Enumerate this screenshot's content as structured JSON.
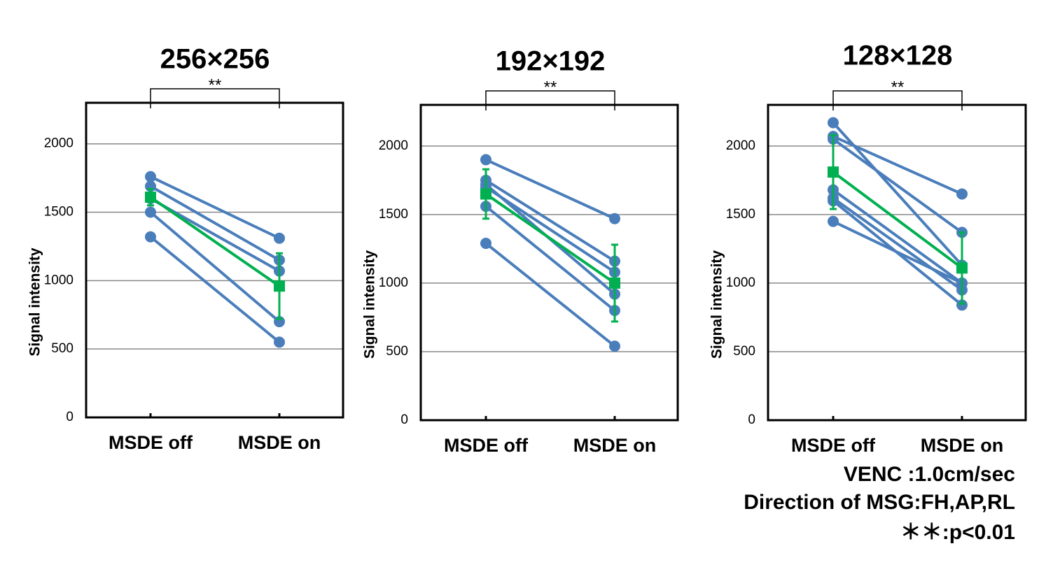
{
  "chart_data": [
    {
      "type": "line",
      "title": "256×256",
      "annotation": "**",
      "y_label": "Signal intensity",
      "categories": [
        "MSDE off",
        "MSDE on"
      ],
      "ylim": [
        0,
        2300
      ],
      "yticks": [
        0,
        500,
        1000,
        1500,
        2000
      ],
      "grid": true,
      "series": [
        {
          "color": "#4a7ebb",
          "values": [
            1760,
            1310
          ]
        },
        {
          "color": "#4a7ebb",
          "values": [
            1690,
            1150
          ]
        },
        {
          "color": "#4a7ebb",
          "values": [
            1600,
            1070
          ]
        },
        {
          "color": "#4a7ebb",
          "values": [
            1500,
            700
          ]
        },
        {
          "color": "#4a7ebb",
          "values": [
            1320,
            550
          ]
        },
        {
          "color": "#00b050",
          "values": [
            1610,
            960
          ],
          "errors": [
            60,
            240
          ],
          "marker": "square"
        }
      ]
    },
    {
      "type": "line",
      "title": "192×192",
      "annotation": "**",
      "y_label": "Signal intensity",
      "categories": [
        "MSDE off",
        "MSDE on"
      ],
      "ylim": [
        0,
        2300
      ],
      "yticks": [
        0,
        500,
        1000,
        1500,
        2000
      ],
      "grid": true,
      "series": [
        {
          "color": "#4a7ebb",
          "values": [
            1900,
            1470
          ]
        },
        {
          "color": "#4a7ebb",
          "values": [
            1750,
            1160
          ]
        },
        {
          "color": "#4a7ebb",
          "values": [
            1720,
            920
          ]
        },
        {
          "color": "#4a7ebb",
          "values": [
            1700,
            1080
          ]
        },
        {
          "color": "#4a7ebb",
          "values": [
            1560,
            800
          ]
        },
        {
          "color": "#4a7ebb",
          "values": [
            1290,
            540
          ]
        },
        {
          "color": "#00b050",
          "values": [
            1650,
            1000
          ],
          "errors": [
            180,
            280
          ],
          "marker": "square"
        }
      ]
    },
    {
      "type": "line",
      "title": "128×128",
      "annotation": "**",
      "y_label": "Signal intensity",
      "categories": [
        "MSDE off",
        "MSDE on"
      ],
      "ylim": [
        0,
        2300
      ],
      "yticks": [
        0,
        500,
        1000,
        1500,
        2000
      ],
      "grid": true,
      "series": [
        {
          "color": "#4a7ebb",
          "values": [
            2170,
            1130
          ]
        },
        {
          "color": "#4a7ebb",
          "values": [
            2070,
            1650
          ]
        },
        {
          "color": "#4a7ebb",
          "values": [
            2050,
            1370
          ]
        },
        {
          "color": "#4a7ebb",
          "values": [
            1680,
            1000
          ]
        },
        {
          "color": "#4a7ebb",
          "values": [
            1620,
            950
          ]
        },
        {
          "color": "#4a7ebb",
          "values": [
            1600,
            840
          ]
        },
        {
          "color": "#4a7ebb",
          "values": [
            1450,
            1000
          ]
        },
        {
          "color": "#00b050",
          "values": [
            1810,
            1110
          ],
          "errors": [
            270,
            260
          ],
          "marker": "square"
        }
      ]
    }
  ],
  "notes": [
    "VENC :1.0cm/sec",
    "Direction of MSG:FH,AP,RL",
    "＊＊:p<0.01"
  ]
}
